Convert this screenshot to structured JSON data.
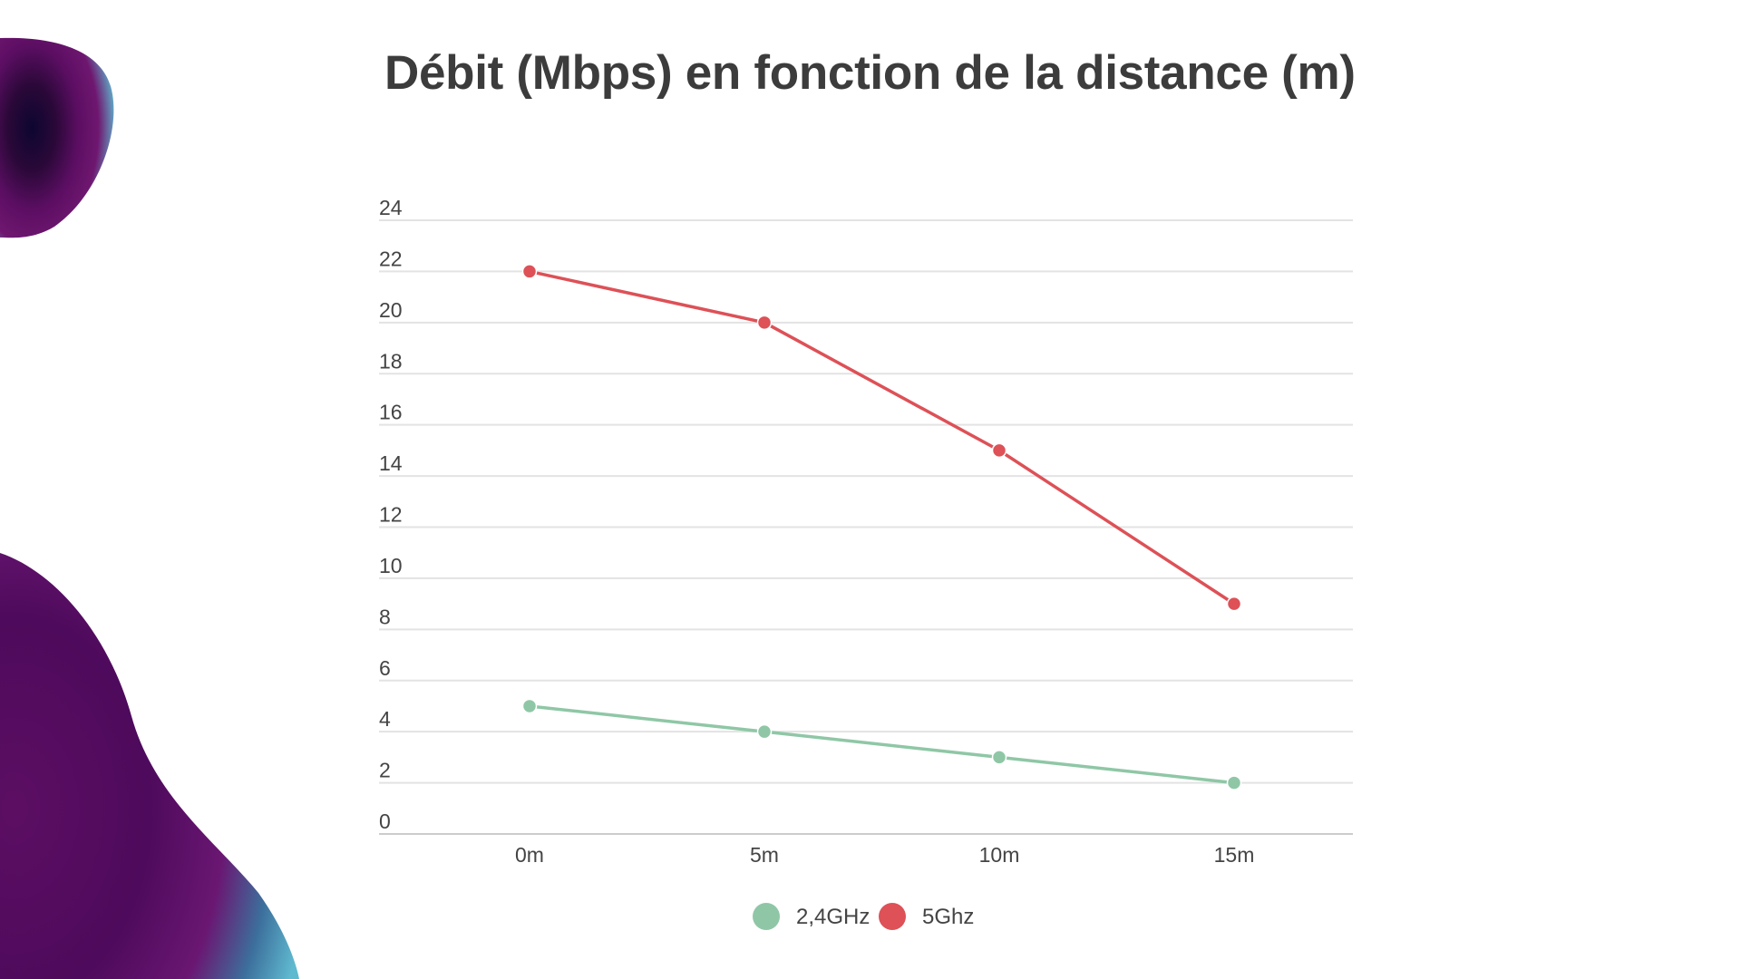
{
  "chart_data": {
    "type": "line",
    "title": "Débit (Mbps) en fonction de la distance (m)",
    "xlabel": "",
    "ylabel": "",
    "categories": [
      "0m",
      "5m",
      "10m",
      "15m"
    ],
    "ylim": [
      0,
      24
    ],
    "yticks": [
      "0",
      "2",
      "4",
      "6",
      "8",
      "10",
      "12",
      "14",
      "16",
      "18",
      "20",
      "22",
      "24"
    ],
    "grid": true,
    "legend_position": "bottom",
    "series": [
      {
        "name": "2,4GHz",
        "color": "#8fc7a6",
        "values": [
          5,
          4,
          3,
          2
        ]
      },
      {
        "name": "5Ghz",
        "color": "#dd5157",
        "values": [
          22,
          20,
          15,
          9
        ]
      }
    ]
  },
  "decoration": {
    "blob_colors": [
      "#0d0630",
      "#5c0e63",
      "#6f1770",
      "#5fb9cf"
    ]
  }
}
